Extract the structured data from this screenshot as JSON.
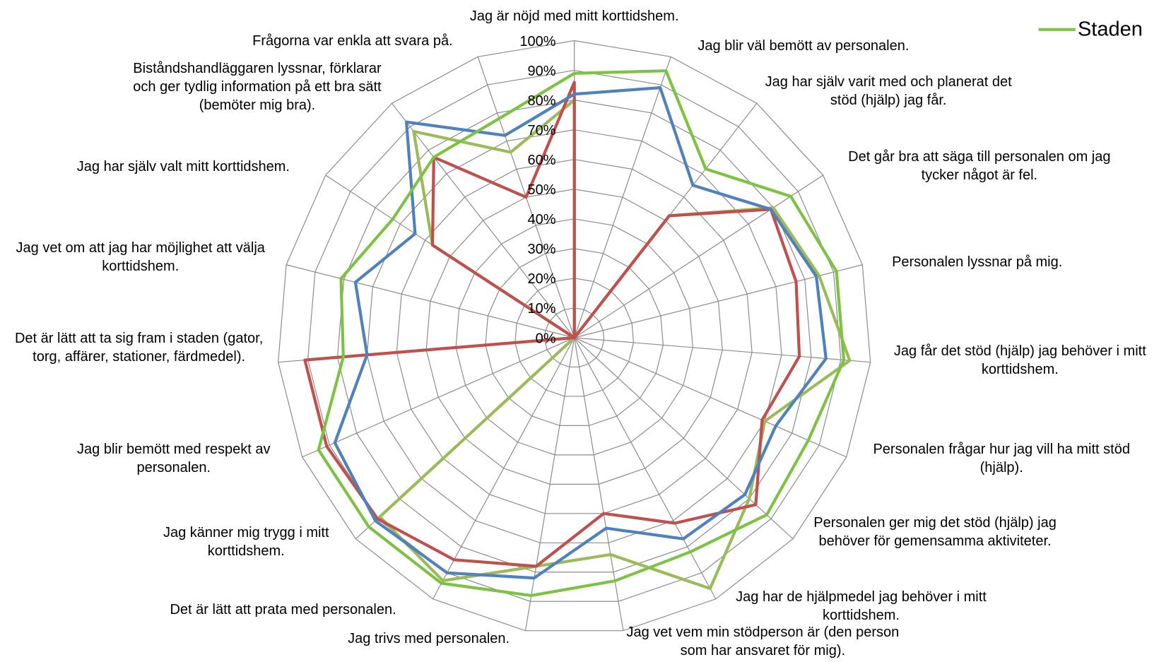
{
  "chart_data": {
    "type": "radar",
    "categories": [
      "Jag är nöjd med mitt korttidshem.",
      "Jag blir väl bemött av personalen.",
      "Jag har själv varit med och planerat det stöd (hjälp) jag får.",
      "Det går bra att säga till personalen om jag tycker något är fel.",
      "Personalen lyssnar på mig.",
      "Jag får det stöd (hjälp) jag behöver i mitt korttidshem.",
      "Personalen frågar hur jag vill ha mitt stöd (hjälp).",
      "Personalen ger mig det stöd (hjälp) jag behöver för gemensamma aktiviteter.",
      "Jag har de hjälpmedel jag behöver i mitt korttidshem.",
      "Jag vet vem min stödperson är (den person som har ansvaret för mig).",
      "Jag trivs med personalen.",
      "Det är lätt att prata med personalen.",
      "Jag känner mig trygg i mitt korttidshem.",
      "Jag blir bemött med respekt av personalen.",
      "Det är lätt att ta sig fram i staden (gator, torg, affärer, stationer, färdmedel).",
      "Jag vet om att jag har möjlighet att välja korttidshem.",
      "Jag har själv valt mitt korttidshem.",
      "Biståndshandläggaren lyssnar, förklarar och ger tydlig information på ett bra sätt (bemöter mig bra).",
      "Frågorna var enkla att svara på."
    ],
    "series": [
      {
        "name": "Staden",
        "color": "#7dc242",
        "values": [
          89,
          95,
          72,
          87,
          91,
          91,
          86,
          88,
          82,
          83,
          88,
          94,
          94,
          94,
          78,
          81,
          73,
          77,
          78
        ]
      },
      {
        "color": "#4f81bd",
        "values": [
          82,
          89,
          65,
          79,
          84,
          85,
          74,
          78,
          77,
          65,
          82,
          90,
          91,
          88,
          70,
          76,
          64,
          92,
          72
        ]
      },
      {
        "color": "#c0504d",
        "values": [
          86,
          0,
          52,
          79,
          77,
          76,
          69,
          83,
          71,
          60,
          78,
          85,
          90,
          91,
          91,
          0,
          57,
          77,
          50
        ]
      },
      {
        "color": "#9bbb59",
        "values": [
          80,
          0,
          52,
          80,
          85,
          93,
          70,
          80,
          96,
          74,
          78,
          93,
          89,
          0,
          0,
          0,
          57,
          88,
          66
        ]
      }
    ],
    "ylim": [
      0,
      100
    ],
    "yticks": [
      {
        "value": 0,
        "label": "0%"
      },
      {
        "value": 10,
        "label": "10%"
      },
      {
        "value": 20,
        "label": "20%"
      },
      {
        "value": 30,
        "label": "30%"
      },
      {
        "value": 40,
        "label": "40%"
      },
      {
        "value": 50,
        "label": "50%"
      },
      {
        "value": 60,
        "label": "60%"
      },
      {
        "value": 70,
        "label": "70%"
      },
      {
        "value": 80,
        "label": "80%"
      },
      {
        "value": 90,
        "label": "90%"
      },
      {
        "value": 100,
        "label": "100%"
      }
    ],
    "grid": true,
    "legend": "top-right"
  }
}
